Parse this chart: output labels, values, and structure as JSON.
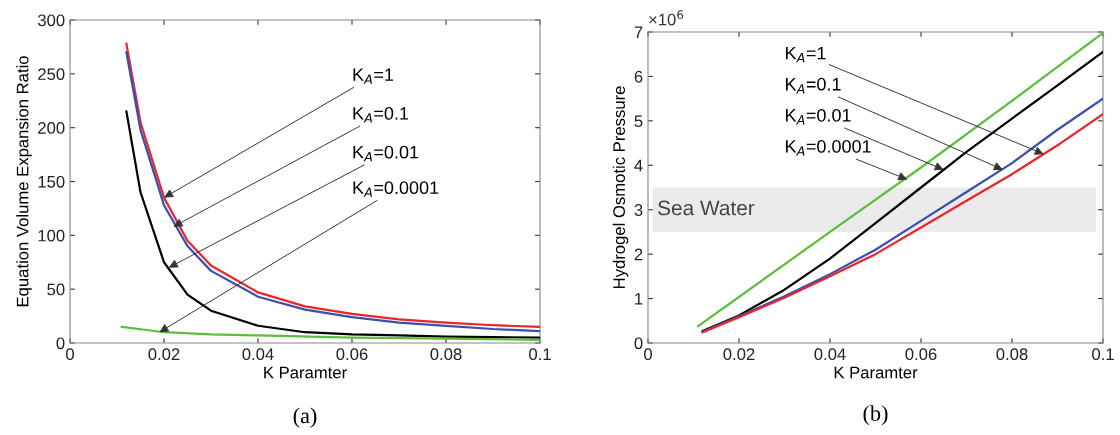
{
  "chart_data": [
    {
      "type": "line",
      "xlabel": "K Paramter",
      "ylabel": "Equation Volume Expansion Ratio",
      "xlim": [
        0,
        0.1
      ],
      "ylim": [
        0,
        300
      ],
      "xticks": [
        0,
        0.02,
        0.04,
        0.06,
        0.08,
        0.1
      ],
      "yticks": [
        0,
        50,
        100,
        150,
        200,
        250,
        300
      ],
      "grid": false,
      "legend": false,
      "series": [
        {
          "color": "#e8262a",
          "x": [
            0.012,
            0.015,
            0.02,
            0.025,
            0.03,
            0.04,
            0.05,
            0.06,
            0.07,
            0.08,
            0.09,
            0.1
          ],
          "values": [
            278,
            205,
            135,
            95,
            72,
            47,
            34,
            27,
            22,
            19,
            16.5,
            15
          ]
        },
        {
          "color": "#3a4fb0",
          "x": [
            0.012,
            0.015,
            0.02,
            0.025,
            0.03,
            0.04,
            0.05,
            0.06,
            0.07,
            0.08,
            0.09,
            0.1
          ],
          "values": [
            270,
            198,
            128,
            90,
            67,
            43,
            31,
            24,
            19,
            16,
            13,
            11
          ]
        },
        {
          "color": "#000000",
          "x": [
            0.012,
            0.015,
            0.02,
            0.025,
            0.03,
            0.04,
            0.05,
            0.06,
            0.07,
            0.08,
            0.09,
            0.1
          ],
          "values": [
            215,
            140,
            75,
            45,
            30,
            16,
            10,
            8,
            7,
            6,
            5.5,
            5
          ]
        },
        {
          "color": "#5cbf3a",
          "x": [
            0.011,
            0.02,
            0.03,
            0.04,
            0.06,
            0.08,
            0.1
          ],
          "values": [
            15,
            10,
            8,
            7,
            5,
            4,
            3
          ]
        }
      ],
      "annotations": [
        {
          "text": "K$_{A}$=1",
          "x": 0.02,
          "y": 135
        },
        {
          "text": "K$_{A}$=0.1",
          "x": 0.022,
          "y": 108
        },
        {
          "text": "K$_{A}$=0.01",
          "x": 0.021,
          "y": 70
        },
        {
          "text": "K$_{A}$=0.0001",
          "x": 0.019,
          "y": 10
        },
        "(a)"
      ]
    },
    {
      "type": "line",
      "xlabel": "K Paramter",
      "ylabel": "Hydrogel Osmotic Pressure",
      "xlim": [
        0,
        0.1
      ],
      "ylim": [
        0,
        7
      ],
      "xticks": [
        0,
        0.02,
        0.04,
        0.06,
        0.08,
        0.1
      ],
      "yticks": [
        0,
        1,
        2,
        3,
        4,
        5,
        6,
        7
      ],
      "grid": false,
      "legend": false,
      "bands": [
        {
          "axis": "y",
          "from": 2.5,
          "to": 3.5,
          "label": "Sea Water",
          "color": "#ebebeb"
        }
      ],
      "series": [
        {
          "color": "#5cbf3a",
          "x": [
            0.011,
            0.04,
            0.06,
            0.08,
            0.1
          ],
          "values": [
            0.38,
            2.5,
            3.95,
            5.45,
            6.98
          ]
        },
        {
          "color": "#000000",
          "x": [
            0.012,
            0.02,
            0.03,
            0.04,
            0.05,
            0.06,
            0.07,
            0.08,
            0.09,
            0.1
          ],
          "values": [
            0.27,
            0.62,
            1.2,
            1.9,
            2.7,
            3.5,
            4.3,
            5.05,
            5.8,
            6.55
          ]
        },
        {
          "color": "#3a4fb0",
          "x": [
            0.012,
            0.02,
            0.03,
            0.04,
            0.05,
            0.06,
            0.07,
            0.08,
            0.09,
            0.1
          ],
          "values": [
            0.25,
            0.6,
            1.05,
            1.55,
            2.1,
            2.75,
            3.4,
            4.05,
            4.8,
            5.5
          ]
        },
        {
          "color": "#e8262a",
          "x": [
            0.012,
            0.02,
            0.03,
            0.04,
            0.05,
            0.06,
            0.07,
            0.08,
            0.09,
            0.1
          ],
          "values": [
            0.24,
            0.58,
            1.02,
            1.5,
            2.0,
            2.6,
            3.2,
            3.8,
            4.45,
            5.15
          ]
        }
      ],
      "annotations": [
        {
          "text": "K$_{A}$=1",
          "x": 0.087,
          "y": 4.25
        },
        {
          "text": "K$_{A}$=0.1",
          "x": 0.078,
          "y": 3.9
        },
        {
          "text": "K$_{A}$=0.01",
          "x": 0.065,
          "y": 3.9
        },
        {
          "text": "K$_{A}$=0.0001",
          "x": 0.057,
          "y": 3.68
        },
        "×10$^{6}$",
        "(b)"
      ]
    }
  ]
}
